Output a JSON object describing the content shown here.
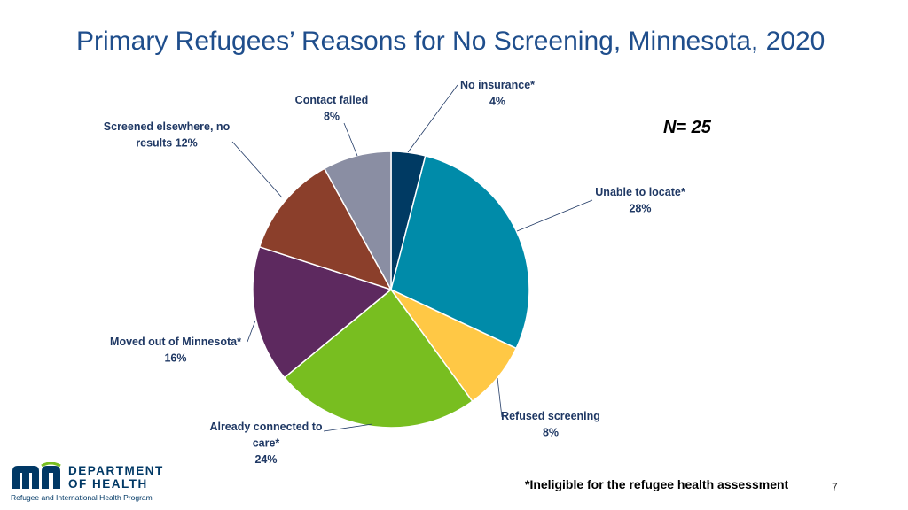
{
  "header": {
    "title": "Primary Refugees’ Reasons for No Screening, Minnesota, 2020"
  },
  "sample": {
    "label": "N= 25"
  },
  "chart_data": {
    "type": "pie",
    "title": "Primary Refugees’ Reasons for No Screening, Minnesota, 2020",
    "slices": [
      {
        "lines": [
          "No insurance*",
          "4%"
        ],
        "value": 4,
        "color": "#003a63"
      },
      {
        "lines": [
          "Unable to locate*",
          "28%"
        ],
        "value": 28,
        "color": "#008ba9"
      },
      {
        "lines": [
          "Refused screening",
          "8%"
        ],
        "value": 8,
        "color": "#ffc845"
      },
      {
        "lines": [
          "Already connected to",
          "care*",
          "24%"
        ],
        "value": 24,
        "color": "#78be20"
      },
      {
        "lines": [
          "Moved out of Minnesota*",
          "16%"
        ],
        "value": 16,
        "color": "#5d295f"
      },
      {
        "lines": [
          "Screened elsewhere, no",
          "results 12%"
        ],
        "value": 12,
        "color": "#8b3f2b"
      },
      {
        "lines": [
          "Contact failed",
          "8%"
        ],
        "value": 8,
        "color": "#8a8ea3"
      }
    ]
  },
  "footer": {
    "footnote": "*Ineligible for the refugee health assessment",
    "page_number": "7",
    "logo": {
      "line1": "DEPARTMENT",
      "line2": "OF HEALTH",
      "program": "Refugee and International Health Program"
    }
  }
}
